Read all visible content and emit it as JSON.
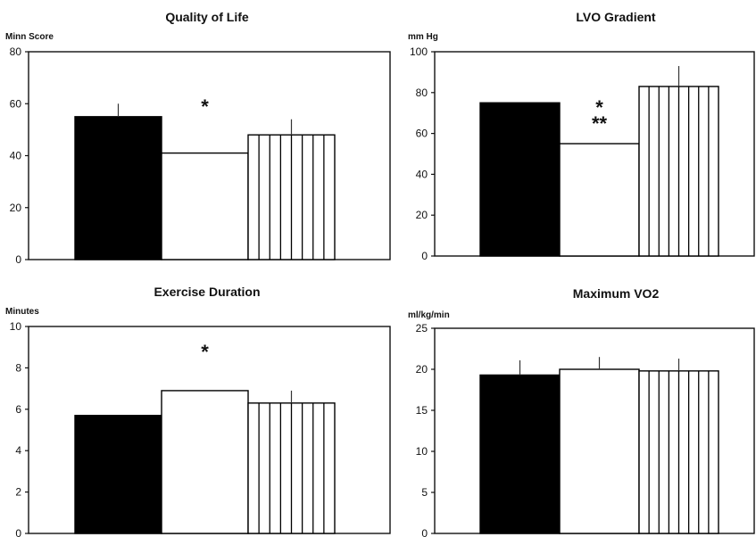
{
  "chart_data": [
    {
      "type": "bar",
      "title": "Quality of Life",
      "ylabel": "Minn Score",
      "ylim": [
        0,
        80
      ],
      "yticks": [
        0,
        20,
        40,
        60,
        80
      ],
      "bar_styles": [
        "solid",
        "open",
        "striped"
      ],
      "values": [
        55,
        41,
        48
      ],
      "errors": [
        5,
        0,
        6
      ],
      "annotations": [
        {
          "bar_index": 1,
          "text": "*",
          "y": 59
        }
      ]
    },
    {
      "type": "bar",
      "title": "LVO Gradient",
      "ylabel": "mm Hg",
      "ylim": [
        0,
        100
      ],
      "yticks": [
        0,
        20,
        40,
        60,
        80,
        100
      ],
      "bar_styles": [
        "solid",
        "open",
        "striped"
      ],
      "values": [
        75,
        55,
        83
      ],
      "errors": [
        0,
        0,
        10
      ],
      "annotations": [
        {
          "bar_index": 1,
          "text": "*",
          "y": 73
        },
        {
          "bar_index": 1,
          "text": "**",
          "y": 65
        }
      ]
    },
    {
      "type": "bar",
      "title": "Exercise Duration",
      "ylabel": "Minutes",
      "ylim": [
        0,
        10
      ],
      "yticks": [
        0,
        2,
        4,
        6,
        8,
        10
      ],
      "bar_styles": [
        "solid",
        "open",
        "striped"
      ],
      "values": [
        5.7,
        6.9,
        6.3
      ],
      "errors": [
        0,
        0,
        0.6
      ],
      "annotations": [
        {
          "bar_index": 1,
          "text": "*",
          "y": 8.8
        }
      ]
    },
    {
      "type": "bar",
      "title": "Maximum VO2",
      "ylabel": "ml/kg/min",
      "ylim": [
        0,
        25
      ],
      "yticks": [
        0,
        5,
        10,
        15,
        20,
        25
      ],
      "bar_styles": [
        "solid",
        "open",
        "striped"
      ],
      "values": [
        19.3,
        20,
        19.8
      ],
      "errors": [
        1.8,
        1.5,
        1.5
      ],
      "annotations": []
    }
  ]
}
